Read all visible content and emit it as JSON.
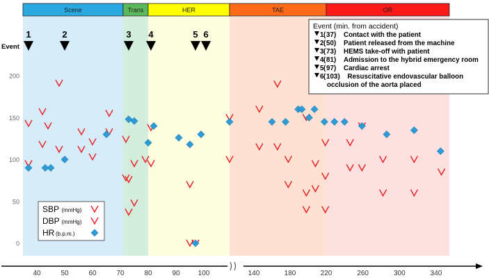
{
  "chart_data": {
    "type": "scatter",
    "title": "",
    "xlabel": "",
    "ylabel": "",
    "ylim": [
      0,
      200
    ],
    "y_ticks": [
      "0",
      "50",
      "100",
      "150",
      "200"
    ],
    "x_ticks_left": [
      "40",
      "50",
      "60",
      "70",
      "80",
      "90",
      "100"
    ],
    "x_ticks_right": [
      "140",
      "180",
      "220",
      "260",
      "300",
      "340"
    ],
    "axis_break": true,
    "event_axis_label": "Event",
    "phases": [
      {
        "name": "Scene",
        "start": 35,
        "end": 71,
        "color": "#29a9e0",
        "band": "#d6ecf9"
      },
      {
        "name": "Trans",
        "start": 71,
        "end": 80,
        "color": "#5cb85c",
        "band": "#d3eedd"
      },
      {
        "name": "HER",
        "start": 80,
        "end": 136,
        "color": "#ffff00",
        "band": "#fdfde0"
      },
      {
        "name": "TAE",
        "start": 136,
        "end": 220,
        "color": "#ff6a1a",
        "band": "#fde2d4"
      },
      {
        "name": "OR",
        "start": 220,
        "end": 355,
        "color": "#ff1a1a",
        "band": "#fde0e0"
      }
    ],
    "events": [
      {
        "id": "1",
        "minute": 37,
        "desc": "Contact with the patient"
      },
      {
        "id": "2",
        "minute": 50,
        "desc": "Patient released from the machine"
      },
      {
        "id": "3",
        "minute": 73,
        "desc": "HEMS take-off with patient"
      },
      {
        "id": "4",
        "minute": 81,
        "desc": "Admission to the hybrid emergency room"
      },
      {
        "id": "5",
        "minute": 97,
        "desc": "Cardiac arrest"
      },
      {
        "id": "6",
        "minute": 103,
        "desc": "Resuscitative endovascular balloon",
        "desc2": "occlusion of the aorta placed"
      }
    ],
    "event_legend_title": "Event (min. from accident)",
    "series": [
      {
        "name": "SBP",
        "unit": "(mmHg)",
        "marker": "check",
        "color": "#e8262a",
        "points": [
          [
            37,
            143
          ],
          [
            42,
            157
          ],
          [
            44,
            140
          ],
          [
            48,
            191
          ],
          [
            56,
            133
          ],
          [
            60,
            121
          ],
          [
            66,
            155
          ],
          [
            72,
            124
          ],
          [
            73,
            76
          ],
          [
            81,
            138
          ],
          [
            95,
            70
          ],
          [
            136,
            150
          ],
          [
            146,
            160
          ],
          [
            166,
            190
          ],
          [
            198,
            150
          ],
          [
            219,
            120
          ],
          [
            246,
            120
          ],
          [
            259,
            140
          ]
        ]
      },
      {
        "name": "DBP",
        "unit": "(mmHg)",
        "marker": "check",
        "color": "#e8262a",
        "points": [
          [
            37,
            95
          ],
          [
            42,
            118
          ],
          [
            48,
            112
          ],
          [
            56,
            112
          ],
          [
            60,
            103
          ],
          [
            66,
            133
          ],
          [
            72,
            78
          ],
          [
            73,
            37
          ],
          [
            75,
            95
          ],
          [
            75,
            48
          ],
          [
            79,
            100
          ],
          [
            81,
            95
          ],
          [
            95,
            0
          ],
          [
            97,
            0
          ],
          [
            136,
            100
          ],
          [
            146,
            115
          ],
          [
            166,
            115
          ],
          [
            178,
            70
          ],
          [
            178,
            100
          ],
          [
            198,
            60
          ],
          [
            198,
            40
          ],
          [
            208,
            95
          ],
          [
            208,
            65
          ],
          [
            219,
            80
          ],
          [
            219,
            40
          ],
          [
            246,
            90
          ],
          [
            259,
            90
          ],
          [
            282,
            100
          ],
          [
            282,
            60
          ],
          [
            316,
            100
          ],
          [
            316,
            60
          ],
          [
            346,
            85
          ]
        ]
      },
      {
        "name": "HR",
        "unit": "(b.p.m.)",
        "marker": "diamond",
        "color": "#2e9bd6",
        "points": [
          [
            37,
            90
          ],
          [
            43,
            90
          ],
          [
            45,
            90
          ],
          [
            50,
            100
          ],
          [
            65,
            130
          ],
          [
            73,
            148
          ],
          [
            75,
            146
          ],
          [
            80,
            120
          ],
          [
            82,
            140
          ],
          [
            91,
            126
          ],
          [
            95,
            118
          ],
          [
            99,
            130
          ],
          [
            97,
            0
          ],
          [
            136,
            145
          ],
          [
            160,
            145
          ],
          [
            175,
            145
          ],
          [
            189,
            160
          ],
          [
            193,
            160
          ],
          [
            201,
            150
          ],
          [
            207,
            160
          ],
          [
            218,
            145
          ],
          [
            229,
            145
          ],
          [
            240,
            145
          ],
          [
            259,
            140
          ],
          [
            286,
            130
          ],
          [
            316,
            135
          ],
          [
            345,
            110
          ]
        ]
      }
    ]
  }
}
